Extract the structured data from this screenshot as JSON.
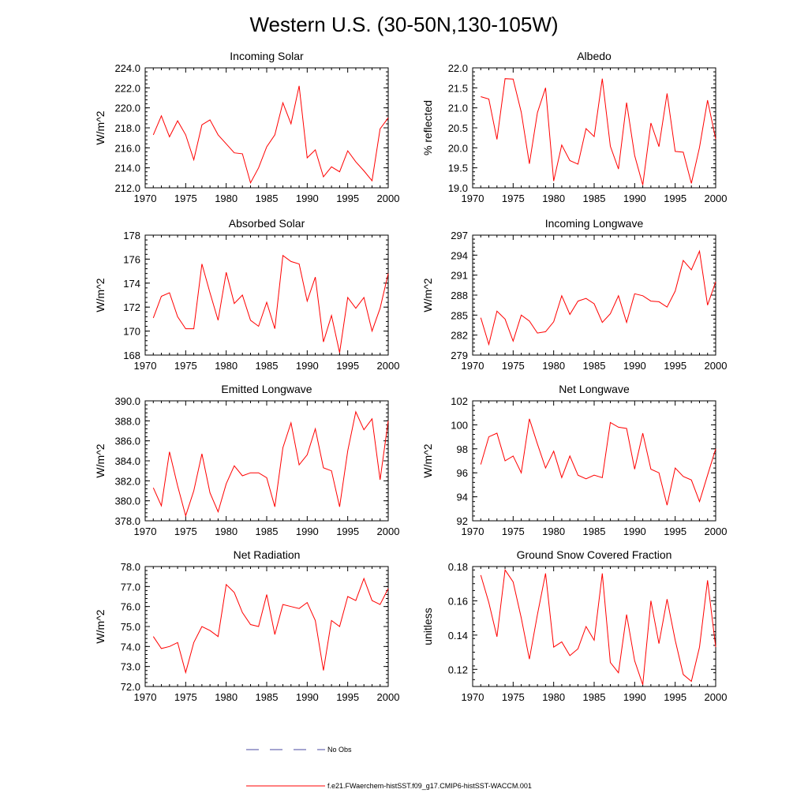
{
  "page_title": "Western U.S. (30-50N,130-105W)",
  "colors": {
    "series": "#ff0000",
    "obs": "#4a4aa0",
    "axis": "#000000"
  },
  "legend": {
    "items": [
      {
        "label": "No Obs",
        "style": "dashed",
        "color": "#4a4aa0"
      },
      {
        "label": "f.e21.FWaerchem-histSST.f09_g17.CMIP6-histSST-WACCM.001",
        "style": "solid",
        "color": "#ff0000"
      }
    ]
  },
  "chart_data": [
    {
      "type": "line",
      "title": "Incoming Solar",
      "ylabel": "W/m^2",
      "xlim": [
        1970,
        2000
      ],
      "ylim": [
        212.0,
        224.0
      ],
      "xticks": [
        1970,
        1975,
        1980,
        1985,
        1990,
        1995,
        2000
      ],
      "yticks": [
        212.0,
        214.0,
        216.0,
        218.0,
        220.0,
        222.0,
        224.0
      ],
      "ytick_labels": [
        "212.0",
        "214.0",
        "216.0",
        "218.0",
        "220.0",
        "222.0",
        "224.0"
      ],
      "x": [
        1971,
        1972,
        1973,
        1974,
        1975,
        1976,
        1977,
        1978,
        1979,
        1980,
        1981,
        1982,
        1983,
        1984,
        1985,
        1986,
        1987,
        1988,
        1989,
        1990,
        1991,
        1992,
        1993,
        1994,
        1995,
        1996,
        1997,
        1998,
        1999,
        2000
      ],
      "series": [
        {
          "values": [
            217.3,
            219.2,
            217.1,
            218.7,
            217.3,
            214.8,
            218.3,
            218.8,
            217.3,
            216.4,
            215.5,
            215.4,
            212.5,
            214.0,
            216.1,
            217.3,
            220.5,
            218.4,
            222.2,
            215.0,
            215.8,
            213.1,
            214.1,
            213.6,
            215.7,
            214.6,
            213.7,
            212.7,
            217.9,
            219.0
          ]
        }
      ]
    },
    {
      "type": "line",
      "title": "Albedo",
      "ylabel": "% reflected",
      "xlim": [
        1970,
        2000
      ],
      "ylim": [
        19.0,
        22.0
      ],
      "xticks": [
        1970,
        1975,
        1980,
        1985,
        1990,
        1995,
        2000
      ],
      "yticks": [
        19.0,
        19.5,
        20.0,
        20.5,
        21.0,
        21.5,
        22.0
      ],
      "ytick_labels": [
        "19.0",
        "19.5",
        "20.0",
        "20.5",
        "21.0",
        "21.5",
        "22.0"
      ],
      "x": [
        1971,
        1972,
        1973,
        1974,
        1975,
        1976,
        1977,
        1978,
        1979,
        1980,
        1981,
        1982,
        1983,
        1984,
        1985,
        1986,
        1987,
        1988,
        1989,
        1990,
        1991,
        1992,
        1993,
        1994,
        1995,
        1996,
        1997,
        1998,
        1999,
        2000
      ],
      "series": [
        {
          "values": [
            21.28,
            21.22,
            20.21,
            21.73,
            21.72,
            20.89,
            19.6,
            20.88,
            21.5,
            19.17,
            20.07,
            19.68,
            19.59,
            20.48,
            20.28,
            21.73,
            20.04,
            19.47,
            21.13,
            19.81,
            19.07,
            20.62,
            20.03,
            21.36,
            19.91,
            19.89,
            19.11,
            20.01,
            21.19,
            20.22
          ]
        }
      ]
    },
    {
      "type": "line",
      "title": "Absorbed Solar",
      "ylabel": "W/m^2",
      "xlim": [
        1970,
        2000
      ],
      "ylim": [
        168,
        178
      ],
      "xticks": [
        1970,
        1975,
        1980,
        1985,
        1990,
        1995,
        2000
      ],
      "yticks": [
        168,
        170,
        172,
        174,
        176,
        178
      ],
      "ytick_labels": [
        "168",
        "170",
        "172",
        "174",
        "176",
        "178"
      ],
      "x": [
        1971,
        1972,
        1973,
        1974,
        1975,
        1976,
        1977,
        1978,
        1979,
        1980,
        1981,
        1982,
        1983,
        1984,
        1985,
        1986,
        1987,
        1988,
        1989,
        1990,
        1991,
        1992,
        1993,
        1994,
        1995,
        1996,
        1997,
        1998,
        1999,
        2000
      ],
      "series": [
        {
          "values": [
            171.1,
            172.9,
            173.2,
            171.2,
            170.2,
            170.2,
            175.6,
            173.2,
            170.9,
            174.9,
            172.3,
            173.0,
            170.9,
            170.4,
            172.4,
            170.2,
            176.3,
            175.8,
            175.6,
            172.5,
            174.5,
            169.1,
            171.3,
            168.2,
            172.8,
            171.9,
            172.8,
            170.0,
            171.9,
            174.8
          ]
        }
      ]
    },
    {
      "type": "line",
      "title": "Incoming Longwave",
      "ylabel": "W/m^2",
      "xlim": [
        1970,
        2000
      ],
      "ylim": [
        279,
        297
      ],
      "xticks": [
        1970,
        1975,
        1980,
        1985,
        1990,
        1995,
        2000
      ],
      "yticks": [
        279,
        282,
        285,
        288,
        291,
        294,
        297
      ],
      "ytick_labels": [
        "279",
        "282",
        "285",
        "288",
        "291",
        "294",
        "297"
      ],
      "x": [
        1971,
        1972,
        1973,
        1974,
        1975,
        1976,
        1977,
        1978,
        1979,
        1980,
        1981,
        1982,
        1983,
        1984,
        1985,
        1986,
        1987,
        1988,
        1989,
        1990,
        1991,
        1992,
        1993,
        1994,
        1995,
        1996,
        1997,
        1998,
        1999,
        2000
      ],
      "series": [
        {
          "values": [
            284.6,
            280.6,
            285.6,
            284.4,
            281.1,
            285.0,
            284.1,
            282.3,
            282.5,
            284.0,
            287.9,
            285.1,
            287.1,
            287.5,
            286.7,
            283.9,
            285.2,
            287.9,
            283.9,
            288.2,
            287.9,
            287.1,
            287.0,
            286.2,
            288.6,
            293.2,
            291.8,
            294.6,
            286.5,
            290.0
          ]
        }
      ]
    },
    {
      "type": "line",
      "title": "Emitted Longwave",
      "ylabel": "W/m^2",
      "xlim": [
        1970,
        2000
      ],
      "ylim": [
        378.0,
        390.0
      ],
      "xticks": [
        1970,
        1975,
        1980,
        1985,
        1990,
        1995,
        2000
      ],
      "yticks": [
        378.0,
        380.0,
        382.0,
        384.0,
        386.0,
        388.0,
        390.0
      ],
      "ytick_labels": [
        "378.0",
        "380.0",
        "382.0",
        "384.0",
        "386.0",
        "388.0",
        "390.0"
      ],
      "x": [
        1971,
        1972,
        1973,
        1974,
        1975,
        1976,
        1977,
        1978,
        1979,
        1980,
        1981,
        1982,
        1983,
        1984,
        1985,
        1986,
        1987,
        1988,
        1989,
        1990,
        1991,
        1992,
        1993,
        1994,
        1995,
        1996,
        1997,
        1998,
        1999,
        2000
      ],
      "series": [
        {
          "values": [
            381.3,
            379.5,
            384.9,
            381.5,
            378.5,
            381.0,
            384.7,
            380.8,
            378.9,
            381.7,
            383.5,
            382.5,
            382.8,
            382.8,
            382.3,
            379.4,
            385.3,
            387.8,
            383.6,
            384.6,
            387.2,
            383.3,
            383.0,
            379.4,
            385.0,
            388.9,
            387.1,
            388.2,
            382.1,
            388.0
          ]
        }
      ]
    },
    {
      "type": "line",
      "title": "Net Longwave",
      "ylabel": "W/m^2",
      "xlim": [
        1970,
        2000
      ],
      "ylim": [
        92,
        102
      ],
      "xticks": [
        1970,
        1975,
        1980,
        1985,
        1990,
        1995,
        2000
      ],
      "yticks": [
        92,
        94,
        96,
        98,
        100,
        102
      ],
      "ytick_labels": [
        "92",
        "94",
        "96",
        "98",
        "100",
        "102"
      ],
      "x": [
        1971,
        1972,
        1973,
        1974,
        1975,
        1976,
        1977,
        1978,
        1979,
        1980,
        1981,
        1982,
        1983,
        1984,
        1985,
        1986,
        1987,
        1988,
        1989,
        1990,
        1991,
        1992,
        1993,
        1994,
        1995,
        1996,
        1997,
        1998,
        1999,
        2000
      ],
      "series": [
        {
          "values": [
            96.7,
            99.0,
            99.3,
            97.0,
            97.4,
            96.0,
            100.5,
            98.4,
            96.4,
            97.8,
            95.6,
            97.4,
            95.8,
            95.5,
            95.8,
            95.6,
            100.2,
            99.8,
            99.7,
            96.3,
            99.3,
            96.3,
            96.0,
            93.3,
            96.4,
            95.7,
            95.4,
            93.6,
            95.8,
            98.0
          ]
        }
      ]
    },
    {
      "type": "line",
      "title": "Net Radiation",
      "ylabel": "W/m^2",
      "xlim": [
        1970,
        2000
      ],
      "ylim": [
        72.0,
        78.0
      ],
      "xticks": [
        1970,
        1975,
        1980,
        1985,
        1990,
        1995,
        2000
      ],
      "yticks": [
        72.0,
        73.0,
        74.0,
        75.0,
        76.0,
        77.0,
        78.0
      ],
      "ytick_labels": [
        "72.0",
        "73.0",
        "74.0",
        "75.0",
        "76.0",
        "77.0",
        "78.0"
      ],
      "x": [
        1971,
        1972,
        1973,
        1974,
        1975,
        1976,
        1977,
        1978,
        1979,
        1980,
        1981,
        1982,
        1983,
        1984,
        1985,
        1986,
        1987,
        1988,
        1989,
        1990,
        1991,
        1992,
        1993,
        1994,
        1995,
        1996,
        1997,
        1998,
        1999,
        2000
      ],
      "series": [
        {
          "values": [
            74.5,
            73.9,
            74.0,
            74.2,
            72.7,
            74.2,
            75.0,
            74.8,
            74.5,
            77.1,
            76.7,
            75.7,
            75.1,
            75.0,
            76.6,
            74.6,
            76.1,
            76.0,
            75.9,
            76.2,
            75.3,
            72.8,
            75.3,
            75.0,
            76.5,
            76.3,
            77.4,
            76.3,
            76.1,
            76.9
          ]
        }
      ]
    },
    {
      "type": "line",
      "title": "Ground Snow Covered Fraction",
      "ylabel": "unitless",
      "xlim": [
        1970,
        2000
      ],
      "ylim": [
        0.11,
        0.18
      ],
      "xticks": [
        1970,
        1975,
        1980,
        1985,
        1990,
        1995,
        2000
      ],
      "yticks": [
        0.12,
        0.14,
        0.16,
        0.18
      ],
      "ytick_labels": [
        "0.12",
        "0.14",
        "0.16",
        "0.18"
      ],
      "x": [
        1971,
        1972,
        1973,
        1974,
        1975,
        1976,
        1977,
        1978,
        1979,
        1980,
        1981,
        1982,
        1983,
        1984,
        1985,
        1986,
        1987,
        1988,
        1989,
        1990,
        1991,
        1992,
        1993,
        1994,
        1995,
        1996,
        1997,
        1998,
        1999,
        2000
      ],
      "series": [
        {
          "values": [
            0.175,
            0.159,
            0.139,
            0.178,
            0.171,
            0.15,
            0.126,
            0.152,
            0.176,
            0.133,
            0.136,
            0.128,
            0.132,
            0.145,
            0.137,
            0.176,
            0.124,
            0.118,
            0.152,
            0.125,
            0.111,
            0.16,
            0.135,
            0.161,
            0.137,
            0.117,
            0.113,
            0.133,
            0.172,
            0.133
          ]
        }
      ]
    }
  ]
}
